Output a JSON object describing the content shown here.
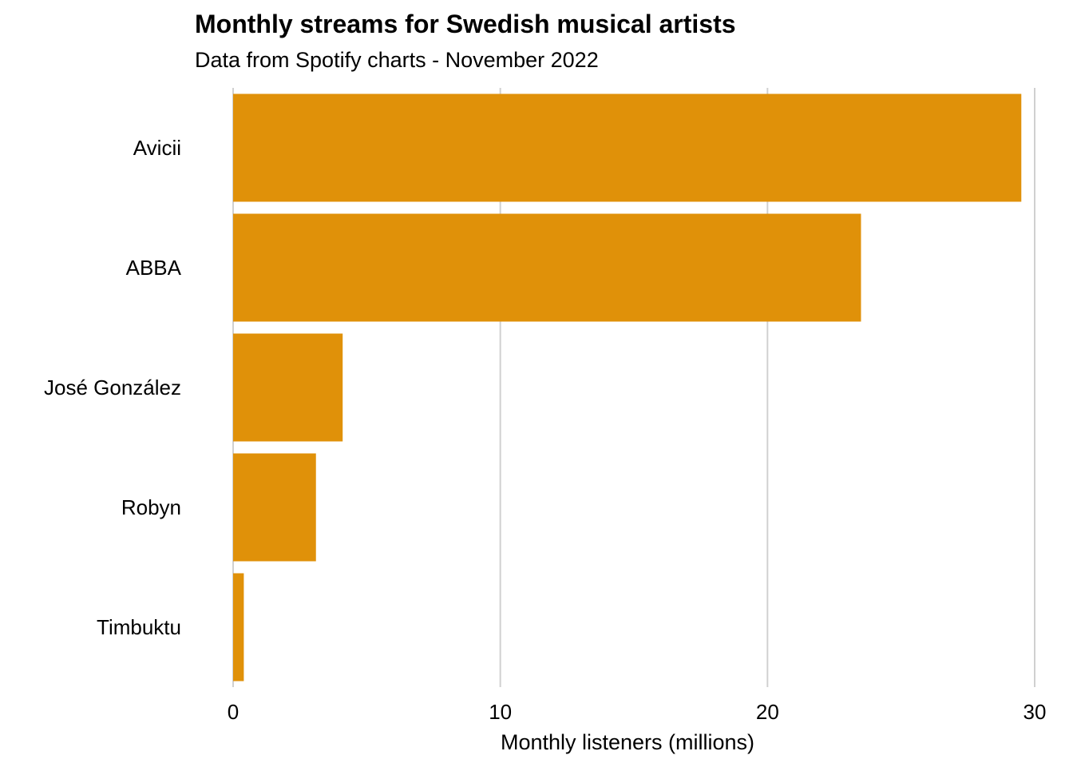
{
  "chart_data": {
    "type": "bar",
    "orientation": "horizontal",
    "title": "Monthly streams for Swedish musical artists",
    "subtitle": "Data from Spotify charts - November 2022",
    "xlabel": "Monthly listeners (millions)",
    "ylabel": "",
    "categories": [
      "Avicii",
      "ABBA",
      "José González",
      "Robyn",
      "Timbuktu"
    ],
    "values": [
      29.5,
      23.5,
      4.1,
      3.1,
      0.4
    ],
    "xlim": [
      0,
      30
    ],
    "xticks": [
      0,
      10,
      20,
      30
    ],
    "grid": "vertical major",
    "legend": "none",
    "bar_color": "#E09109",
    "grid_color": "#D0D0D0"
  }
}
